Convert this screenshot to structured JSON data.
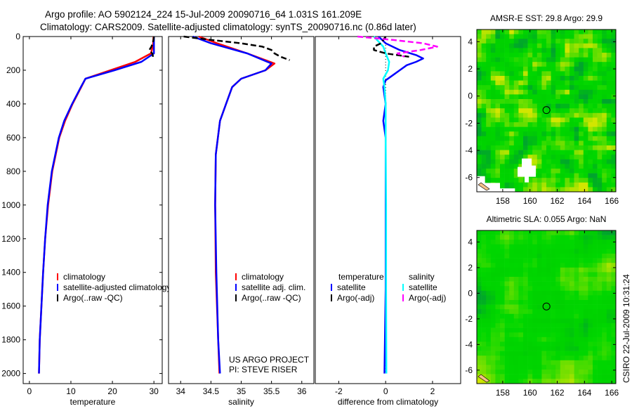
{
  "title": {
    "line1": "Argo profile: AO 5902124_224 15-Jul-2009 20090716_64 1.031S 161.209E",
    "line2": "Climatology: CARS2009. Satellite-adjusted climatology: synTS_20090716.nc (0.86d later)"
  },
  "side_stamp": "CSIRO 22-Jul-2009 10:31:24",
  "chart_data": [
    {
      "type": "line",
      "id": "temperature",
      "xlabel": "temperature",
      "ylabel": "",
      "xlim": [
        -1.5,
        32
      ],
      "ylim": [
        0,
        2060
      ],
      "xticks": [
        0,
        10,
        20,
        30
      ],
      "yticks": [
        0,
        200,
        400,
        600,
        800,
        1000,
        1200,
        1400,
        1600,
        1800,
        2000
      ],
      "legend": {
        "placement": "lower-center",
        "entries": [
          "climatology",
          "satellite-adjusted climatology",
          "Argo(..raw -QC)"
        ]
      },
      "series": [
        {
          "name": "climatology",
          "color": "#ff0000",
          "style": "solid",
          "depth": [
            0,
            50,
            100,
            150,
            200,
            250,
            300,
            400,
            500,
            600,
            800,
            1000,
            1200,
            1400,
            1600,
            1800,
            2000
          ],
          "values": [
            29.9,
            29.8,
            29.3,
            25.5,
            19.5,
            13.5,
            12.5,
            10.4,
            8.6,
            7.2,
            5.5,
            4.5,
            3.8,
            3.3,
            2.9,
            2.5,
            2.3
          ]
        },
        {
          "name": "satellite-adjusted climatology",
          "color": "#0000ff",
          "style": "solid",
          "depth": [
            0,
            50,
            100,
            150,
            200,
            250,
            300,
            400,
            500,
            600,
            800,
            1000,
            1200,
            1400,
            1600,
            1800,
            2000
          ],
          "values": [
            30.0,
            30.0,
            30.0,
            27.0,
            20.5,
            13.5,
            12.4,
            10.3,
            8.4,
            7.1,
            5.4,
            4.4,
            3.8,
            3.3,
            2.9,
            2.5,
            2.3
          ]
        },
        {
          "name": "Argo(..raw -QC)",
          "color": "#000000",
          "style": "dashed",
          "depth": [
            0,
            20,
            40,
            60,
            80,
            100,
            120
          ],
          "values": [
            30.0,
            29.9,
            29.7,
            29.4,
            28.9,
            29.6,
            29.8
          ]
        }
      ]
    },
    {
      "type": "line",
      "id": "salinity",
      "xlabel": "salinity",
      "xlim": [
        33.8,
        36.2
      ],
      "ylim": [
        0,
        2060
      ],
      "xticks": [
        34,
        34.5,
        35,
        35.5,
        36
      ],
      "legend": {
        "placement": "lower-center",
        "entries": [
          "climatology",
          "satellite adj. clim.",
          "Argo(..raw -QC)"
        ]
      },
      "annotation": [
        "US ARGO PROJECT",
        "PI: STEVE RISER"
      ],
      "series": [
        {
          "name": "climatology",
          "color": "#ff0000",
          "style": "solid",
          "depth": [
            0,
            40,
            100,
            160,
            200,
            250,
            300,
            400,
            500,
            700,
            1000,
            1400,
            1800,
            2000
          ],
          "values": [
            34.3,
            34.6,
            35.1,
            35.55,
            35.4,
            35.0,
            34.85,
            34.75,
            34.65,
            34.58,
            34.57,
            34.58,
            34.62,
            34.64
          ]
        },
        {
          "name": "satellite adj. clim.",
          "color": "#0000ff",
          "style": "solid",
          "depth": [
            0,
            40,
            100,
            160,
            200,
            250,
            300,
            400,
            500,
            700,
            1000,
            1400,
            1800,
            2000
          ],
          "values": [
            34.2,
            34.5,
            35.1,
            35.5,
            35.4,
            35.0,
            34.85,
            34.75,
            34.65,
            34.58,
            34.57,
            34.59,
            34.62,
            34.65
          ]
        },
        {
          "name": "Argo(..raw -QC)",
          "color": "#000000",
          "style": "dashed",
          "depth": [
            0,
            20,
            40,
            60,
            80,
            100,
            120,
            140
          ],
          "values": [
            34.05,
            34.5,
            35.0,
            35.35,
            35.5,
            35.55,
            35.65,
            35.8
          ]
        }
      ]
    },
    {
      "type": "line",
      "id": "difference",
      "xlabel": "difference from climatology",
      "xlim": [
        -3,
        3.2
      ],
      "ylim": [
        0,
        2060
      ],
      "xticks": [
        -2,
        0,
        2
      ],
      "legend": {
        "placement": "lower-center",
        "headers": [
          "temperature",
          "salinity"
        ],
        "entries": [
          "satellite",
          "Argo(-adj)",
          "satellite",
          "Argo(-adj)"
        ]
      },
      "series": [
        {
          "name": "temperature satellite",
          "color": "#0000ff",
          "style": "solid",
          "depth": [
            0,
            40,
            80,
            110,
            130,
            150,
            170,
            200,
            230,
            260,
            300,
            400,
            500,
            600,
            1000,
            1500,
            2000
          ],
          "values": [
            -0.3,
            0.0,
            0.6,
            1.3,
            1.6,
            1.3,
            0.9,
            0.6,
            0.3,
            0.0,
            -0.1,
            0.0,
            -0.1,
            0.0,
            0.0,
            0.0,
            -0.05
          ]
        },
        {
          "name": "salinity satellite",
          "color": "#00ffff",
          "style": "solid",
          "depth": [
            0,
            30,
            60,
            100,
            150,
            200,
            250,
            300,
            400,
            600,
            1000,
            1500,
            2000
          ],
          "values": [
            -0.5,
            -0.3,
            -0.1,
            0.0,
            0.15,
            0.1,
            -0.1,
            -0.05,
            0.0,
            0.0,
            0.02,
            0.02,
            0.03
          ]
        },
        {
          "name": "temperature Argo(-adj)",
          "color": "#000000",
          "style": "dashed",
          "depth": [
            0,
            20,
            40,
            60,
            80,
            100,
            120
          ],
          "values": [
            0.0,
            -0.1,
            -0.2,
            -0.5,
            -0.5,
            0.0,
            1.0
          ]
        },
        {
          "name": "salinity Argo(-adj)",
          "color": "#ff00ff",
          "style": "dashed",
          "depth": [
            0,
            20,
            40,
            60,
            80,
            100,
            120
          ],
          "values": [
            -1.2,
            0.3,
            1.6,
            2.2,
            1.5,
            0.5,
            0.8
          ]
        }
      ]
    },
    {
      "type": "heatmap",
      "id": "sst-map",
      "title": "AMSR-E SST: 29.8 Argo: 29.9",
      "xlim": [
        156.1,
        166.3
      ],
      "ylim": [
        -7.05,
        4.9
      ],
      "xticks": [
        158,
        160,
        162,
        164,
        166
      ],
      "yticks": [
        4,
        2,
        0,
        -2,
        -4,
        -6
      ],
      "marker": {
        "lon": 161.209,
        "lat": -1.031
      }
    },
    {
      "type": "heatmap",
      "id": "sla-map",
      "title": "Altimetric SLA: 0.055 Argo: NaN",
      "xlim": [
        156.1,
        166.3
      ],
      "ylim": [
        -7.05,
        4.9
      ],
      "xticks": [
        158,
        160,
        162,
        164,
        166
      ],
      "yticks": [
        4,
        2,
        0,
        -2,
        -4,
        -6
      ],
      "marker": {
        "lon": 161.209,
        "lat": -1.031
      }
    }
  ]
}
